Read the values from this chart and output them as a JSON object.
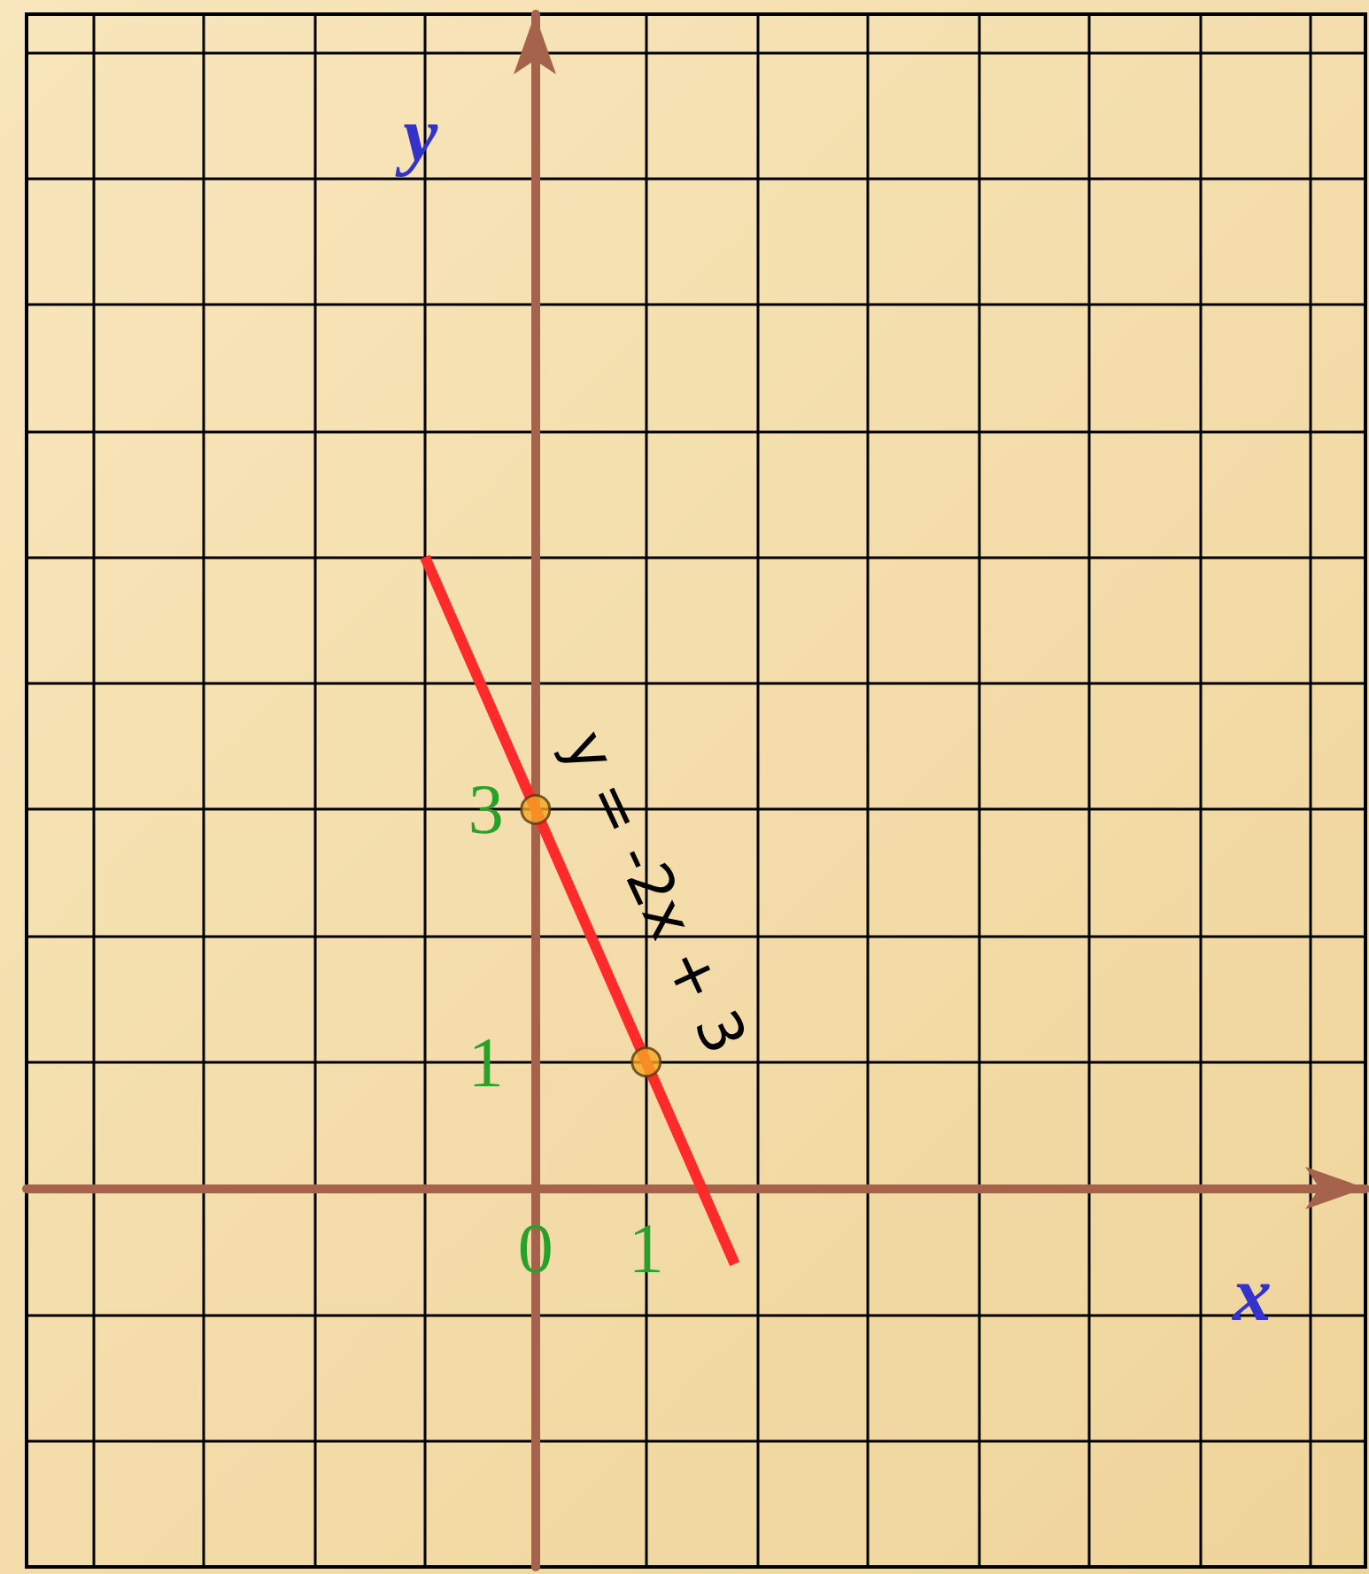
{
  "chart_data": {
    "type": "line",
    "xlabel": "x",
    "ylabel": "y",
    "xlim": [
      -4.6,
      7.5
    ],
    "ylim": [
      -3,
      9.3
    ],
    "xticks": [
      {
        "value": -4,
        "label": null
      },
      {
        "value": -3,
        "label": null
      },
      {
        "value": -2,
        "label": null
      },
      {
        "value": -1,
        "label": null
      },
      {
        "value": 0,
        "label": "0"
      },
      {
        "value": 1,
        "label": "1"
      },
      {
        "value": 2,
        "label": null
      },
      {
        "value": 3,
        "label": null
      },
      {
        "value": 4,
        "label": null
      },
      {
        "value": 5,
        "label": null
      },
      {
        "value": 6,
        "label": null
      },
      {
        "value": 7,
        "label": null
      }
    ],
    "yticks": [
      {
        "value": -2,
        "label": null
      },
      {
        "value": -1,
        "label": null
      },
      {
        "value": 1,
        "label": "1"
      },
      {
        "value": 2,
        "label": null
      },
      {
        "value": 3,
        "label": "3"
      },
      {
        "value": 4,
        "label": null
      },
      {
        "value": 5,
        "label": null
      },
      {
        "value": 6,
        "label": null
      },
      {
        "value": 7,
        "label": null
      },
      {
        "value": 8,
        "label": null
      },
      {
        "value": 9,
        "label": null
      }
    ],
    "grid": true,
    "series": [
      {
        "color": "#ff2a2a",
        "x": [
          -1,
          1.8
        ],
        "values": [
          5,
          -0.6
        ],
        "marker": "none"
      },
      {
        "type": "scatter",
        "color": "#f5a623",
        "x": [
          0,
          1
        ],
        "values": [
          3,
          1
        ],
        "marker": "circle"
      }
    ],
    "annotations": [
      "y = -2x + 3"
    ]
  }
}
